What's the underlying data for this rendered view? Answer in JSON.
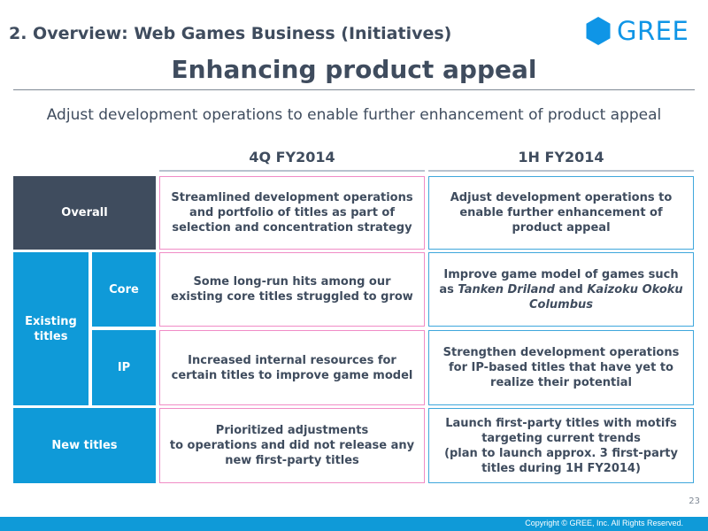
{
  "header": {
    "section_title": "2. Overview: Web Games Business (Initiatives)",
    "logo_text": "GREE",
    "brand_color": "#0f95e6"
  },
  "main_title": "Enhancing product appeal",
  "subtitle": "Adjust development operations to enable further enhancement of product appeal",
  "columns": {
    "previous": "4Q FY2014",
    "next": "1H FY2014"
  },
  "row_labels": {
    "overall": "Overall",
    "existing_titles": "Existing titles",
    "core": "Core",
    "ip": "IP",
    "new_titles": "New titles"
  },
  "rows": {
    "overall": {
      "previous": "Streamlined development operations and portfolio of titles as part of selection and concentration strategy",
      "next": "Adjust development operations to enable further enhancement of product appeal"
    },
    "core": {
      "previous": "Some long-run hits among our existing core titles struggled to grow",
      "next_prefix": "Improve game model of games such as ",
      "next_title_1": "Tanken Driland",
      "next_middle": " and ",
      "next_title_2": "Kaizoku Okoku Columbus"
    },
    "ip": {
      "previous": "Increased internal resources for certain titles to improve game model",
      "next": "Strengthen development operations for IP-based titles that have yet to realize their potential"
    },
    "new_titles": {
      "previous_line_1": "Prioritized adjustments",
      "previous_line_2": "to operations and did not release any new first-party titles",
      "next_line_1": "Launch first-party titles with motifs targeting current trends",
      "next_line_2": "(plan to launch approx. 3 first-party titles during 1H FY2014)"
    }
  },
  "footer": {
    "page_number": "23",
    "copyright": "Copyright © GREE, Inc. All Rights Reserved."
  },
  "colors": {
    "dark": "#3f4c5e",
    "blue": "#0f9ad8",
    "pink_border": "#f08cc6",
    "blue_border": "#3fa7dc"
  }
}
